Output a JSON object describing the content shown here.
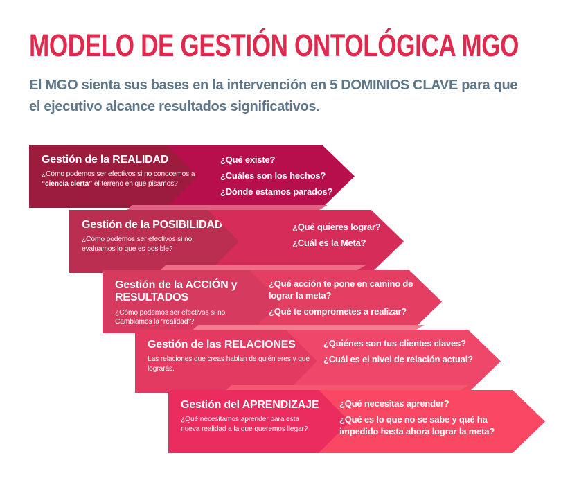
{
  "header": {
    "title": "MODELO DE GESTIÓN ONTOLÓGICA MGO",
    "title_color": "#E02A4D",
    "subtitle": "El MGO sienta sus bases en la intervención en 5 DOMINIOS CLAVE para que el ejecutivo alcance resultados significativos.",
    "subtitle_color": "#5D7689"
  },
  "banners": [
    {
      "title": "Gestión de la REALIDAD",
      "desc_pre": "¿Cómo podemos ser efectivos si no conocemos a ",
      "desc_bold": "“ciencia cierta”",
      "desc_post": " el terreno en que pisamos?",
      "questions": [
        "¿Qué existe?",
        "¿Cuáles son los hechos?",
        "¿Dónde estamos parados?"
      ],
      "colors": {
        "block": "#9C1C3E",
        "arrow": "#B60F4B",
        "fold": "#C85570"
      }
    },
    {
      "title": "Gestión de la POSIBILIDAD",
      "desc_pre": "¿Cómo podemos ser efectivos si no evaluamos lo que es posible?",
      "desc_bold": "",
      "desc_post": "",
      "questions": [
        "¿Qué quieres lograr?",
        "¿Cuál es la Meta?"
      ],
      "colors": {
        "block": "#BA2F51",
        "arrow": "#D62C59",
        "fold": "#E06181"
      }
    },
    {
      "title": "Gestión de la ACCIÓN y RESULTADOS",
      "desc_pre": "¿Cómo podemos ser efectivos si no Cambiamos la “realidad”?",
      "desc_bold": "",
      "desc_post": "",
      "questions": [
        "¿Qué acción te pone en camino de lograr la meta?",
        "¿Qué te comprometes a realizar?"
      ],
      "colors": {
        "block": "#D63A5E",
        "arrow": "#E43E63",
        "fold": "#EF6F89"
      }
    },
    {
      "title": "Gestión de las RELACIONES",
      "desc_pre": "Las relaciones que creas hablan de quién eres y qué lograrás.",
      "desc_bold": "",
      "desc_post": "",
      "questions": [
        "¿Quiénes son tus clientes claves?",
        "¿Cuál es el nivel de relación actual?"
      ],
      "colors": {
        "block": "#E23A60",
        "arrow": "#EF4769",
        "fold": "#F67C92"
      }
    },
    {
      "title": "Gestión del APRENDIZAJE",
      "desc_pre": "¿Qué necesitamos aprender para esta nueva realidad a la que queremos llegar?",
      "desc_bold": "",
      "desc_post": "",
      "questions": [
        "¿Qué necesitas aprender?",
        "¿Qué es lo que no se sabe y qué ha impedido hasta ahora lograr la meta?"
      ],
      "colors": {
        "block": "#EB2C5F",
        "arrow": "#FA4763",
        "fold": "#F4586F"
      }
    }
  ]
}
